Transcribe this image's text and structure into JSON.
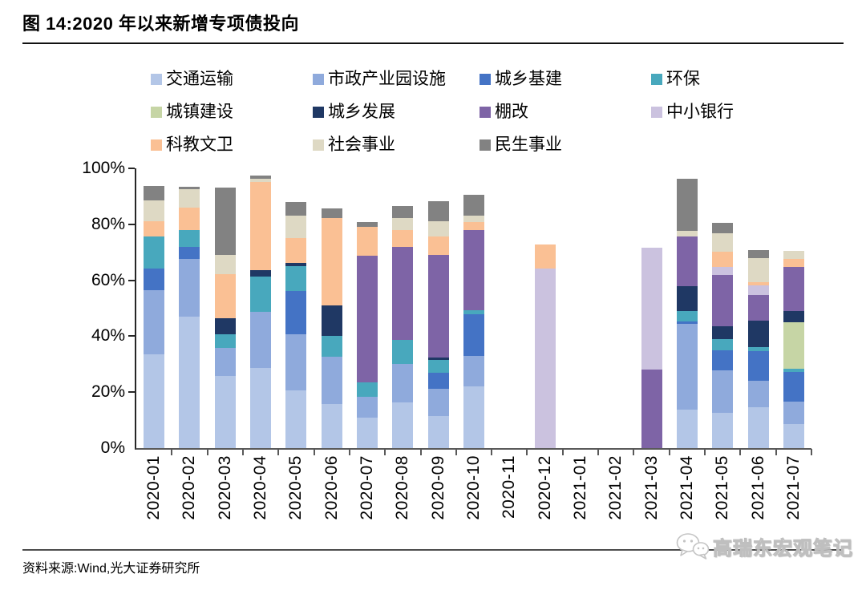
{
  "figure": {
    "title": "图 14:2020 年以来新增专项债投向",
    "source": "资料来源:Wind,光大证券研究所",
    "watermark": {
      "text": "高瑞东宏观笔记",
      "icon": "wechat-icon"
    }
  },
  "chart_data": {
    "type": "bar",
    "stacked": true,
    "unit": "%",
    "title": "2020 年以来新增专项债投向",
    "xlabel": "",
    "ylabel": "",
    "ylim": [
      0,
      100
    ],
    "grid": false,
    "legend_position": "top",
    "y_axis": {
      "ticks": [
        {
          "label": "0%",
          "value": 0
        },
        {
          "label": "20%",
          "value": 20
        },
        {
          "label": "40%",
          "value": 40
        },
        {
          "label": "60%",
          "value": 60
        },
        {
          "label": "80%",
          "value": 80
        },
        {
          "label": "100%",
          "value": 100
        }
      ]
    },
    "categories": [
      "2020-01",
      "2020-02",
      "2020-03",
      "2020-04",
      "2020-05",
      "2020-06",
      "2020-07",
      "2020-08",
      "2020-09",
      "2020-10",
      "2020-11",
      "2020-12",
      "2021-01",
      "2021-02",
      "2021-03",
      "2021-04",
      "2021-05",
      "2021-06",
      "2021-07"
    ],
    "series": [
      {
        "name": "交通运输",
        "color": "#b3c6e7",
        "values": [
          33.4,
          47.0,
          25.8,
          28.8,
          20.7,
          15.7,
          11.0,
          16.4,
          11.6,
          22.1,
          0,
          0,
          0,
          0,
          0,
          13.8,
          12.6,
          14.6,
          8.6
        ]
      },
      {
        "name": "市政产业园设施",
        "color": "#8faadc",
        "values": [
          23.1,
          20.5,
          10.1,
          20.0,
          20.0,
          16.9,
          7.3,
          13.8,
          9.5,
          10.9,
          0,
          0,
          0,
          0,
          0,
          30.7,
          15.2,
          9.5,
          8.0
        ]
      },
      {
        "name": "城乡基建",
        "color": "#4473c5",
        "values": [
          7.6,
          4.3,
          0,
          0,
          15.5,
          0,
          0,
          0,
          5.8,
          14.8,
          0,
          0,
          0,
          0,
          0,
          0.7,
          7.2,
          10.6,
          10.6
        ]
      },
      {
        "name": "环保",
        "color": "#48a8bd",
        "values": [
          11.6,
          6.2,
          4.8,
          12.6,
          8.8,
          7.6,
          5.2,
          8.4,
          4.7,
          1.4,
          0,
          0,
          0,
          0,
          0,
          3.8,
          4.0,
          1.4,
          1.2
        ]
      },
      {
        "name": "城镇建设",
        "color": "#c6d5a5",
        "values": [
          0,
          0,
          0,
          0,
          0,
          0,
          0,
          0,
          0,
          0,
          0,
          0,
          0,
          0,
          0,
          0,
          0,
          0,
          16.6
        ]
      },
      {
        "name": "城乡发展",
        "color": "#1f3864",
        "values": [
          0,
          0,
          5.7,
          2.3,
          1.2,
          10.9,
          0,
          0,
          0.8,
          0,
          0,
          0,
          0,
          0,
          0,
          8.8,
          4.6,
          9.5,
          4.0
        ]
      },
      {
        "name": "棚改",
        "color": "#7e64a6",
        "values": [
          0,
          0,
          0,
          0,
          0,
          0,
          45.3,
          33.3,
          36.8,
          28.8,
          0,
          0,
          0,
          0,
          28.1,
          17.9,
          18.3,
          9.1,
          15.7
        ]
      },
      {
        "name": "中小银行",
        "color": "#cbc2df",
        "values": [
          0,
          0,
          0,
          0,
          0,
          0,
          0,
          0,
          0,
          0,
          0,
          64.2,
          0,
          0,
          43.5,
          0,
          2.9,
          3.5,
          0
        ]
      },
      {
        "name": "科教文卫",
        "color": "#fac094",
        "values": [
          5.4,
          8.1,
          15.7,
          31.5,
          9.0,
          31.0,
          10.2,
          6.1,
          6.5,
          2.7,
          0,
          8.6,
          0,
          0,
          0,
          0,
          5.4,
          1.1,
          2.9
        ]
      },
      {
        "name": "社会事业",
        "color": "#ded9c4",
        "values": [
          7.4,
          6.5,
          7.1,
          1.1,
          7.9,
          0,
          0,
          4.1,
          5.4,
          2.3,
          0,
          0,
          0,
          0,
          0,
          1.9,
          6.5,
          8.6,
          2.9
        ]
      },
      {
        "name": "民生事业",
        "color": "#828282",
        "values": [
          5.2,
          0.8,
          24.0,
          1.1,
          5.0,
          3.6,
          1.8,
          4.4,
          7.2,
          7.5,
          0,
          0,
          0,
          0,
          0,
          18.7,
          3.8,
          2.9,
          0
        ]
      }
    ]
  }
}
